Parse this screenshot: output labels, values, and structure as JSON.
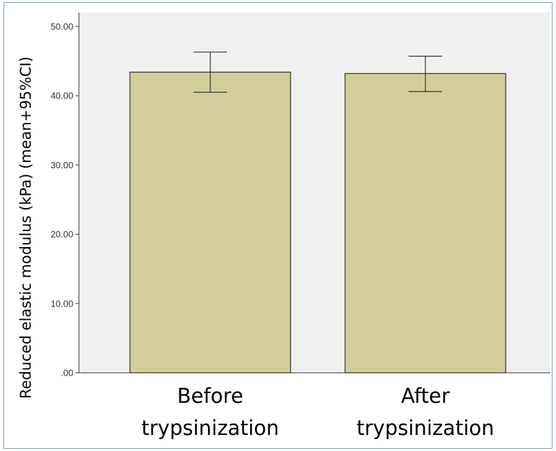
{
  "chart_data": {
    "type": "bar",
    "title": "",
    "xlabel": "",
    "ylabel": "Reduced elastic modulus (kPa) (mean+95%CI)",
    "categories": [
      "Before trypsinization",
      "After trypsinization"
    ],
    "category_label_lines": [
      [
        "Before",
        "trypsinization"
      ],
      [
        "After",
        "trypsinization"
      ]
    ],
    "series": [
      {
        "values": [
          43.4,
          43.2
        ],
        "ci_lower": [
          40.5,
          40.6
        ],
        "ci_upper": [
          46.3,
          45.7
        ]
      }
    ],
    "ylim": [
      0,
      52
    ],
    "yticks": [
      0,
      10,
      20,
      30,
      40,
      50
    ],
    "ytick_labels": [
      ".00",
      "10.00",
      "20.00",
      "30.00",
      "40.00",
      "50.00"
    ],
    "grid": false,
    "legend": "none",
    "colors": {
      "bar_fill": "#d3cd9a",
      "bar_stroke": "#2f2f2f",
      "plot_background": "#f0f0f0",
      "axis": "#333333"
    }
  }
}
